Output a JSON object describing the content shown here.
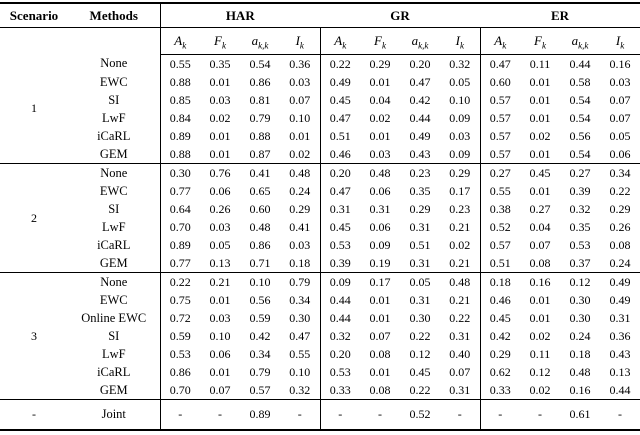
{
  "header": {
    "scenario": "Scenario",
    "methods": "Methods",
    "groups": [
      "HAR",
      "GR",
      "ER"
    ],
    "metrics": [
      {
        "base": "A",
        "sub": "k"
      },
      {
        "base": "F",
        "sub": "k"
      },
      {
        "base": "a",
        "sub": "k,k"
      },
      {
        "base": "I",
        "sub": "k"
      }
    ]
  },
  "blocks": [
    {
      "scenario": "1",
      "rows": [
        {
          "method": "None",
          "values": [
            "0.55",
            "0.35",
            "0.54",
            "0.36",
            "0.22",
            "0.29",
            "0.20",
            "0.32",
            "0.47",
            "0.11",
            "0.44",
            "0.16"
          ]
        },
        {
          "method": "EWC",
          "values": [
            "0.88",
            "0.01",
            "0.86",
            "0.03",
            "0.49",
            "0.01",
            "0.47",
            "0.05",
            "0.60",
            "0.01",
            "0.58",
            "0.03"
          ]
        },
        {
          "method": "SI",
          "values": [
            "0.85",
            "0.03",
            "0.81",
            "0.07",
            "0.45",
            "0.04",
            "0.42",
            "0.10",
            "0.57",
            "0.01",
            "0.54",
            "0.07"
          ]
        },
        {
          "method": "LwF",
          "values": [
            "0.84",
            "0.02",
            "0.79",
            "0.10",
            "0.47",
            "0.02",
            "0.44",
            "0.09",
            "0.57",
            "0.01",
            "0.54",
            "0.07"
          ]
        },
        {
          "method": "iCaRL",
          "values": [
            "0.89",
            "0.01",
            "0.88",
            "0.01",
            "0.51",
            "0.01",
            "0.49",
            "0.03",
            "0.57",
            "0.02",
            "0.56",
            "0.05"
          ]
        },
        {
          "method": "GEM",
          "values": [
            "0.88",
            "0.01",
            "0.87",
            "0.02",
            "0.46",
            "0.03",
            "0.43",
            "0.09",
            "0.57",
            "0.01",
            "0.54",
            "0.06"
          ]
        }
      ]
    },
    {
      "scenario": "2",
      "rows": [
        {
          "method": "None",
          "values": [
            "0.30",
            "0.76",
            "0.41",
            "0.48",
            "0.20",
            "0.48",
            "0.23",
            "0.29",
            "0.27",
            "0.45",
            "0.27",
            "0.34"
          ]
        },
        {
          "method": "EWC",
          "values": [
            "0.77",
            "0.06",
            "0.65",
            "0.24",
            "0.47",
            "0.06",
            "0.35",
            "0.17",
            "0.55",
            "0.01",
            "0.39",
            "0.22"
          ]
        },
        {
          "method": "SI",
          "values": [
            "0.64",
            "0.26",
            "0.60",
            "0.29",
            "0.31",
            "0.31",
            "0.29",
            "0.23",
            "0.38",
            "0.27",
            "0.32",
            "0.29"
          ]
        },
        {
          "method": "LwF",
          "values": [
            "0.70",
            "0.03",
            "0.48",
            "0.41",
            "0.45",
            "0.06",
            "0.31",
            "0.21",
            "0.52",
            "0.04",
            "0.35",
            "0.26"
          ]
        },
        {
          "method": "iCaRL",
          "values": [
            "0.89",
            "0.05",
            "0.86",
            "0.03",
            "0.53",
            "0.09",
            "0.51",
            "0.02",
            "0.57",
            "0.07",
            "0.53",
            "0.08"
          ]
        },
        {
          "method": "GEM",
          "values": [
            "0.77",
            "0.13",
            "0.71",
            "0.18",
            "0.39",
            "0.19",
            "0.31",
            "0.21",
            "0.51",
            "0.08",
            "0.37",
            "0.24"
          ]
        }
      ]
    },
    {
      "scenario": "3",
      "rows": [
        {
          "method": "None",
          "values": [
            "0.22",
            "0.21",
            "0.10",
            "0.79",
            "0.09",
            "0.17",
            "0.05",
            "0.48",
            "0.18",
            "0.16",
            "0.12",
            "0.49"
          ]
        },
        {
          "method": "EWC",
          "values": [
            "0.75",
            "0.01",
            "0.56",
            "0.34",
            "0.44",
            "0.01",
            "0.31",
            "0.21",
            "0.46",
            "0.01",
            "0.30",
            "0.49"
          ]
        },
        {
          "method": "Online EWC",
          "values": [
            "0.72",
            "0.03",
            "0.59",
            "0.30",
            "0.44",
            "0.01",
            "0.30",
            "0.22",
            "0.45",
            "0.01",
            "0.30",
            "0.31"
          ]
        },
        {
          "method": "SI",
          "values": [
            "0.59",
            "0.10",
            "0.42",
            "0.47",
            "0.32",
            "0.07",
            "0.22",
            "0.31",
            "0.42",
            "0.02",
            "0.24",
            "0.36"
          ]
        },
        {
          "method": "LwF",
          "values": [
            "0.53",
            "0.06",
            "0.34",
            "0.55",
            "0.20",
            "0.08",
            "0.12",
            "0.40",
            "0.29",
            "0.11",
            "0.18",
            "0.43"
          ]
        },
        {
          "method": "iCaRL",
          "values": [
            "0.86",
            "0.01",
            "0.79",
            "0.10",
            "0.53",
            "0.01",
            "0.45",
            "0.07",
            "0.62",
            "0.12",
            "0.48",
            "0.13"
          ]
        },
        {
          "method": "GEM",
          "values": [
            "0.70",
            "0.07",
            "0.57",
            "0.32",
            "0.33",
            "0.08",
            "0.22",
            "0.31",
            "0.33",
            "0.02",
            "0.16",
            "0.44"
          ]
        }
      ]
    }
  ],
  "footer": {
    "scenario": "-",
    "method": "Joint",
    "values": [
      "-",
      "-",
      "0.89",
      "-",
      "-",
      "-",
      "0.52",
      "-",
      "-",
      "-",
      "0.61",
      "-"
    ]
  }
}
